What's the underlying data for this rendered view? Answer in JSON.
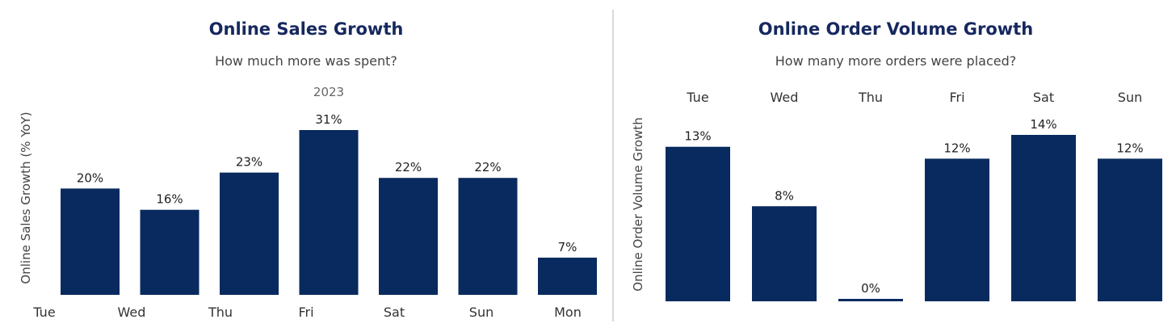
{
  "colors": {
    "bar": "#082a5e",
    "title": "#16285e"
  },
  "chart_data": [
    {
      "type": "bar",
      "title": "Online Sales Growth",
      "subtitle": "How much more was spent?",
      "header": "2023",
      "ylabel": "Online Sales Growth (% YoY)",
      "categories": [
        "Tue",
        "Wed",
        "Thu",
        "Fri",
        "Sat",
        "Sun",
        "Mon"
      ],
      "values": [
        20,
        16,
        23,
        31,
        22,
        22,
        7
      ],
      "value_labels": [
        "20%",
        "16%",
        "23%",
        "31%",
        "22%",
        "22%",
        "7%"
      ],
      "category_position": "bottom",
      "grid": false
    },
    {
      "type": "bar",
      "title": "Online Order Volume Growth",
      "subtitle": "How many more orders were placed?",
      "ylabel": "Online Order Volume Growth",
      "categories": [
        "Tue",
        "Wed",
        "Thu",
        "Fri",
        "Sat",
        "Sun"
      ],
      "values": [
        13,
        8,
        0,
        12,
        14,
        12
      ],
      "value_labels": [
        "13%",
        "8%",
        "0%",
        "12%",
        "14%",
        "12%"
      ],
      "category_position": "top",
      "grid": false
    }
  ]
}
